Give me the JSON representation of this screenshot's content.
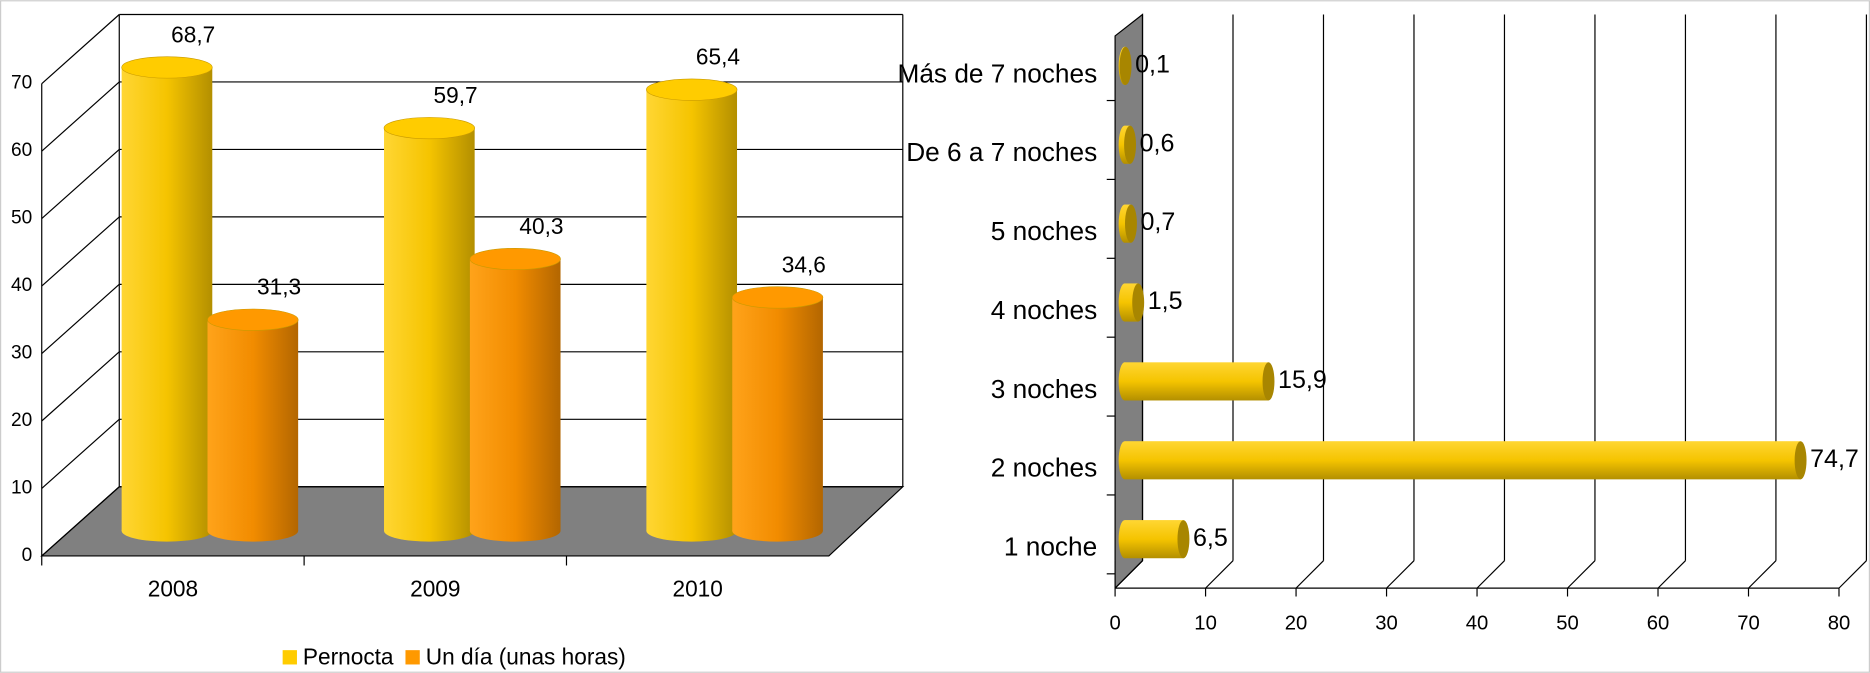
{
  "chart_data": [
    {
      "type": "bar3d",
      "categories": [
        "2008",
        "2009",
        "2010"
      ],
      "series": [
        {
          "name": "Pernocta",
          "color": "#ffcc00",
          "values": [
            68.7,
            59.7,
            65.4
          ],
          "value_labels": [
            "68,7",
            "59,7",
            "65,4"
          ]
        },
        {
          "name": "Un día (unas horas)",
          "color": "#ff9900",
          "values": [
            31.3,
            40.3,
            34.6
          ],
          "value_labels": [
            "31,3",
            "40,3",
            "34,6"
          ]
        }
      ],
      "ylim": [
        0,
        70
      ],
      "yticks": [
        0,
        10,
        20,
        30,
        40,
        50,
        60,
        70
      ],
      "grid": true,
      "legend": "bottom"
    },
    {
      "type": "hbar3d",
      "categories": [
        "1 noche",
        "2 noches",
        "3 noches",
        "4 noches",
        "5 noches",
        "De 6 a 7 noches",
        "Más de 7 noches"
      ],
      "values": [
        6.5,
        74.7,
        15.9,
        1.5,
        0.7,
        0.6,
        0.1
      ],
      "value_labels": [
        "6,5",
        "74,7",
        "15,9",
        "1,5",
        "0,7",
        "0,6",
        "0,1"
      ],
      "color": "#ffcc00",
      "xlim": [
        0,
        80
      ],
      "xticks": [
        0,
        10,
        20,
        30,
        40,
        50,
        60,
        70,
        80
      ],
      "grid": true
    }
  ]
}
